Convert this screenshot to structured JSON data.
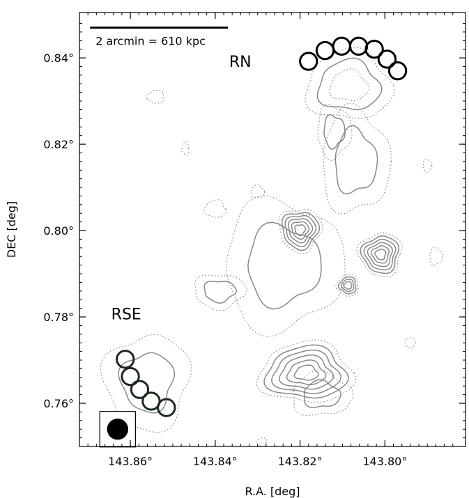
{
  "chart_data": {
    "type": "contour",
    "xlabel": "R.A. [deg]",
    "ylabel": "DEC [deg]",
    "xlim": [
      143.872,
      143.781
    ],
    "ylim": [
      0.75,
      0.8505
    ],
    "x_ticks": [
      143.86,
      143.84,
      143.82,
      143.8
    ],
    "x_tick_labels": [
      "143.86°",
      "143.84°",
      "143.82°",
      "143.80°"
    ],
    "y_ticks": [
      0.76,
      0.78,
      0.8,
      0.82,
      0.84
    ],
    "y_tick_labels": [
      "0.76°",
      "0.78°",
      "0.80°",
      "0.82°",
      "0.84°"
    ],
    "scalebar": {
      "label": "2 arcmin = 610 kpc",
      "ra_start": 143.8695,
      "ra_end": 143.837,
      "dec": 0.847
    },
    "annotations": [
      {
        "text": "RN",
        "ra": 143.8367,
        "dec": 0.8392
      },
      {
        "text": "RSE",
        "ra": 143.8645,
        "dec": 0.7807
      }
    ],
    "regions": [
      {
        "name": "RN",
        "color": "#000000",
        "radius_deg": 0.002,
        "centers": [
          [
            143.818,
            0.8392
          ],
          [
            143.8141,
            0.8417
          ],
          [
            143.8102,
            0.8427
          ],
          [
            143.8062,
            0.8427
          ],
          [
            143.8025,
            0.842
          ],
          [
            143.7995,
            0.8397
          ],
          [
            143.797,
            0.837
          ]
        ]
      },
      {
        "name": "RSE",
        "color": "#1a2a1a",
        "radius_deg": 0.002,
        "centers": [
          [
            143.8612,
            0.7702
          ],
          [
            143.86,
            0.7662
          ],
          [
            143.8578,
            0.7632
          ],
          [
            143.8551,
            0.7605
          ],
          [
            143.8515,
            0.759
          ]
        ]
      }
    ],
    "beam": {
      "ra": 143.863,
      "dec": 0.754,
      "radius_deg": 0.002
    },
    "contour_features": [
      {
        "name": "north-relic",
        "ra": 143.8085,
        "dec": 0.8335,
        "rx": 0.01,
        "ry": 0.008,
        "levels": 3
      },
      {
        "name": "north-bridge",
        "ra": 143.807,
        "dec": 0.816,
        "rx": 0.008,
        "ry": 0.012,
        "levels": 2
      },
      {
        "name": "west-arm",
        "ra": 143.812,
        "dec": 0.823,
        "rx": 0.004,
        "ry": 0.006,
        "levels": 2
      },
      {
        "name": "central-source",
        "ra": 143.82,
        "dec": 0.8002,
        "rx": 0.005,
        "ry": 0.005,
        "levels": 6
      },
      {
        "name": "east-source",
        "ra": 143.801,
        "dec": 0.7945,
        "rx": 0.005,
        "ry": 0.005,
        "levels": 6
      },
      {
        "name": "small-core",
        "ra": 143.8087,
        "dec": 0.7873,
        "rx": 0.0025,
        "ry": 0.0025,
        "levels": 4
      },
      {
        "name": "south-source",
        "ra": 143.8185,
        "dec": 0.767,
        "rx": 0.011,
        "ry": 0.007,
        "levels": 6
      },
      {
        "name": "south-east-tail",
        "ra": 143.815,
        "dec": 0.762,
        "rx": 0.007,
        "ry": 0.005,
        "levels": 2
      },
      {
        "name": "mid-halo",
        "ra": 143.824,
        "dec": 0.792,
        "rx": 0.014,
        "ry": 0.015,
        "levels": 2
      },
      {
        "name": "sw-blob",
        "ra": 143.839,
        "dec": 0.786,
        "rx": 0.006,
        "ry": 0.004,
        "levels": 2
      },
      {
        "name": "rse-relic",
        "ra": 143.856,
        "dec": 0.765,
        "rx": 0.01,
        "ry": 0.011,
        "levels": 2
      },
      {
        "name": "left-blob-1",
        "ra": 143.854,
        "dec": 0.831,
        "rx": 0.002,
        "ry": 0.0015,
        "levels": 1
      },
      {
        "name": "left-blob-2",
        "ra": 143.84,
        "dec": 0.805,
        "rx": 0.0025,
        "ry": 0.002,
        "levels": 1
      },
      {
        "name": "left-blob-3",
        "ra": 143.83,
        "dec": 0.809,
        "rx": 0.0015,
        "ry": 0.0015,
        "levels": 1
      },
      {
        "name": "right-blob-1",
        "ra": 143.788,
        "dec": 0.794,
        "rx": 0.0015,
        "ry": 0.002,
        "levels": 1
      },
      {
        "name": "right-blob-2",
        "ra": 143.79,
        "dec": 0.815,
        "rx": 0.001,
        "ry": 0.0015,
        "levels": 1
      },
      {
        "name": "right-blob-3",
        "ra": 143.794,
        "dec": 0.774,
        "rx": 0.0012,
        "ry": 0.0012,
        "levels": 1
      },
      {
        "name": "bottom-blob",
        "ra": 143.829,
        "dec": 0.751,
        "rx": 0.0012,
        "ry": 0.001,
        "levels": 1
      },
      {
        "name": "left-small",
        "ra": 143.847,
        "dec": 0.819,
        "rx": 0.0008,
        "ry": 0.0015,
        "levels": 1
      }
    ]
  }
}
